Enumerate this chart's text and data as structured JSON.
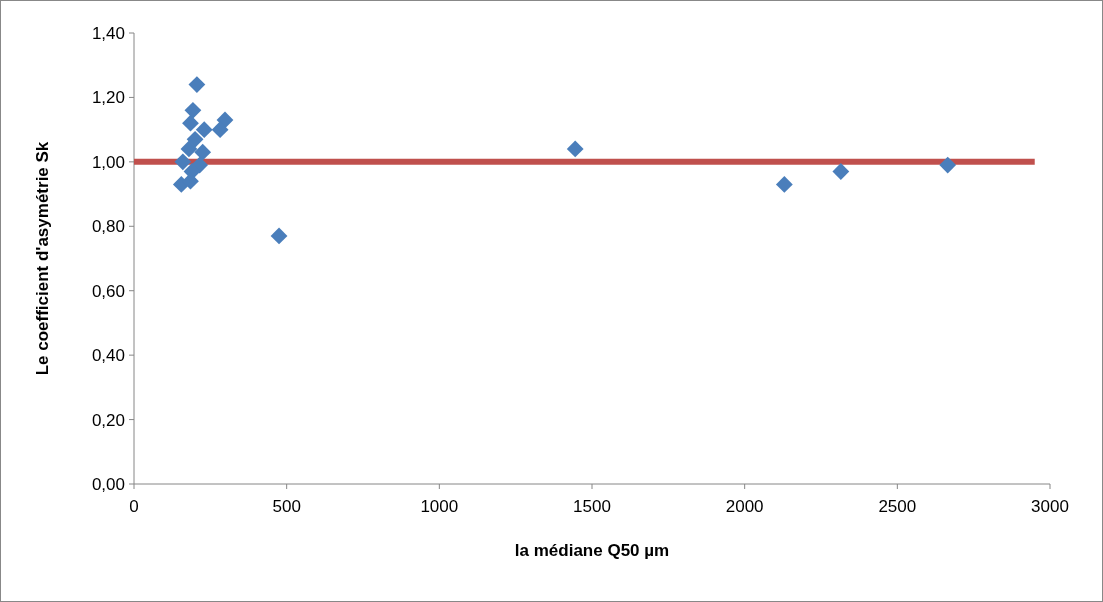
{
  "chart_data": {
    "type": "scatter",
    "xlabel": "la médiane Q50 µm",
    "ylabel": "Le coefficient d'asymétrie Sk",
    "xlim": [
      0,
      3000
    ],
    "xticks": [
      0,
      500,
      1000,
      1500,
      2000,
      2500,
      3000
    ],
    "ylim": [
      0,
      1.4
    ],
    "yticks": [
      {
        "value": 0,
        "label": "0,00"
      },
      {
        "value": 0.2,
        "label": "0,20"
      },
      {
        "value": 0.4,
        "label": "0,40"
      },
      {
        "value": 0.6,
        "label": "0,60"
      },
      {
        "value": 0.8,
        "label": "0,80"
      },
      {
        "value": 1.0,
        "label": "1,00"
      },
      {
        "value": 1.2,
        "label": "1,20"
      },
      {
        "value": 1.4,
        "label": "1,40"
      }
    ],
    "grid": false,
    "series": [
      {
        "marker": "diamond",
        "color": "#4a7ebb",
        "x": [
          206,
          298,
          282,
          193,
          185,
          230,
          200,
          225,
          180,
          160,
          215,
          190,
          155,
          185,
          475,
          1445,
          2130,
          2315,
          2665
        ],
        "values": [
          1.24,
          1.13,
          1.1,
          1.16,
          1.12,
          1.1,
          1.07,
          1.03,
          1.04,
          1.0,
          0.99,
          0.97,
          0.93,
          0.94,
          0.77,
          1.04,
          0.93,
          0.97,
          0.99
        ]
      },
      {
        "type": "line",
        "marker": "none",
        "color": "#c0504d",
        "x": [
          0,
          2950
        ],
        "values": [
          1.0,
          1.0
        ]
      }
    ]
  }
}
